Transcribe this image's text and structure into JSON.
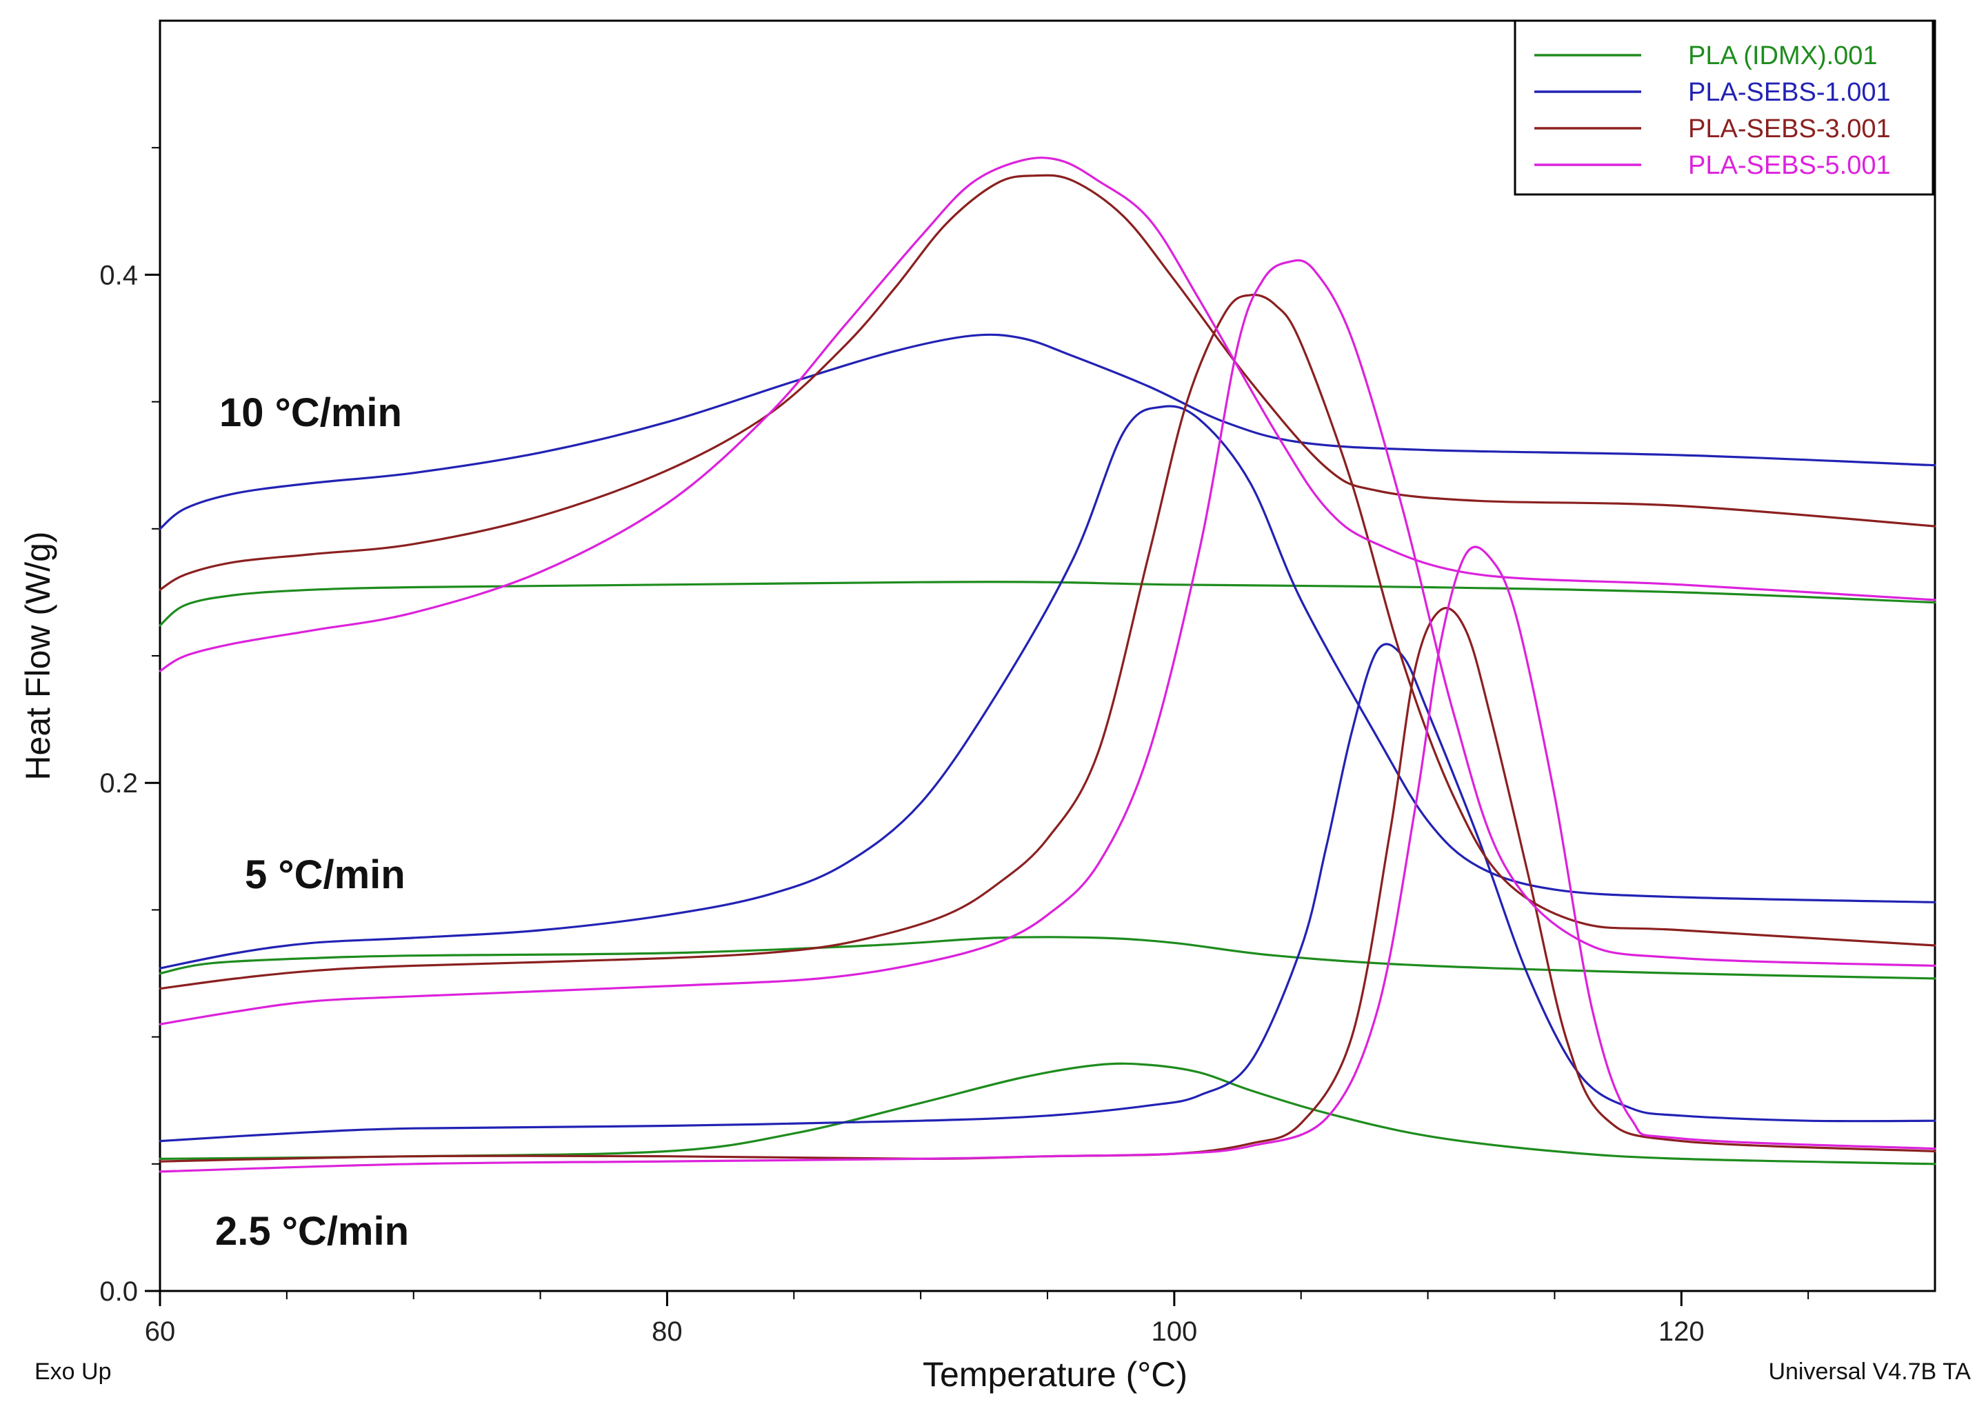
{
  "chart_data": {
    "type": "line",
    "xlabel": "Temperature (°C)",
    "ylabel": "Heat Flow (W/g)",
    "xlim": [
      60,
      130
    ],
    "ylim": [
      0.0,
      0.5
    ],
    "x_ticks": [
      60,
      80,
      100,
      120
    ],
    "x_tick_labels": [
      "60",
      "80",
      "100",
      "120"
    ],
    "x_minor_ticks": [
      65,
      70,
      75,
      85,
      90,
      95,
      105,
      110,
      115,
      125
    ],
    "y_ticks": [
      0.0,
      0.2,
      0.4
    ],
    "y_tick_labels": [
      "0.0",
      "0.2",
      "0.4"
    ],
    "y_minor_ticks": [
      0.05,
      0.1,
      0.15,
      0.25,
      0.3,
      0.35,
      0.45
    ],
    "grid": false,
    "legend_position": "top-right",
    "annotations": {
      "rate_10": "10 °C/min",
      "rate_5": "5 °C/min",
      "rate_2_5": "2.5 °C/min",
      "exo": "Exo Up",
      "software": "Universal V4.7B TA"
    },
    "series": [
      {
        "name": "PLA (IDMX).001",
        "color": "#1e8c1e",
        "curves": [
          [
            [
              60,
              0.262
            ],
            [
              61,
              0.27
            ],
            [
              63,
              0.274
            ],
            [
              66,
              0.276
            ],
            [
              70,
              0.277
            ],
            [
              80,
              0.278
            ],
            [
              90,
              0.279
            ],
            [
              95,
              0.279
            ],
            [
              100,
              0.278
            ],
            [
              110,
              0.277
            ],
            [
              120,
              0.275
            ],
            [
              130,
              0.271
            ]
          ],
          [
            [
              60,
              0.125
            ],
            [
              62,
              0.129
            ],
            [
              66,
              0.131
            ],
            [
              70,
              0.132
            ],
            [
              80,
              0.133
            ],
            [
              88,
              0.136
            ],
            [
              93,
              0.139
            ],
            [
              97,
              0.139
            ],
            [
              100,
              0.137
            ],
            [
              104,
              0.132
            ],
            [
              110,
              0.128
            ],
            [
              120,
              0.125
            ],
            [
              130,
              0.123
            ]
          ],
          [
            [
              60,
              0.052
            ],
            [
              70,
              0.053
            ],
            [
              80,
              0.055
            ],
            [
              85,
              0.062
            ],
            [
              90,
              0.074
            ],
            [
              94,
              0.084
            ],
            [
              97,
              0.089
            ],
            [
              99,
              0.089
            ],
            [
              101,
              0.086
            ],
            [
              103,
              0.079
            ],
            [
              106,
              0.07
            ],
            [
              110,
              0.061
            ],
            [
              115,
              0.055
            ],
            [
              120,
              0.052
            ],
            [
              130,
              0.05
            ]
          ]
        ]
      },
      {
        "name": "PLA-SEBS-1.001",
        "color": "#2222b4",
        "curves": [
          [
            [
              60,
              0.3
            ],
            [
              61,
              0.308
            ],
            [
              63,
              0.314
            ],
            [
              66,
              0.318
            ],
            [
              70,
              0.322
            ],
            [
              75,
              0.33
            ],
            [
              80,
              0.342
            ],
            [
              85,
              0.358
            ],
            [
              89,
              0.37
            ],
            [
              92,
              0.376
            ],
            [
              94,
              0.375
            ],
            [
              96,
              0.368
            ],
            [
              99,
              0.356
            ],
            [
              102,
              0.342
            ],
            [
              105,
              0.334
            ],
            [
              110,
              0.331
            ],
            [
              120,
              0.329
            ],
            [
              130,
              0.325
            ]
          ],
          [
            [
              60,
              0.127
            ],
            [
              63,
              0.133
            ],
            [
              66,
              0.137
            ],
            [
              70,
              0.139
            ],
            [
              75,
              0.142
            ],
            [
              80,
              0.148
            ],
            [
              84,
              0.156
            ],
            [
              87,
              0.168
            ],
            [
              90,
              0.192
            ],
            [
              93,
              0.235
            ],
            [
              96,
              0.288
            ],
            [
              98,
              0.338
            ],
            [
              99.5,
              0.348
            ],
            [
              101,
              0.343
            ],
            [
              103,
              0.318
            ],
            [
              105,
              0.272
            ],
            [
              108,
              0.218
            ],
            [
              110,
              0.185
            ],
            [
              112,
              0.167
            ],
            [
              115,
              0.158
            ],
            [
              120,
              0.155
            ],
            [
              130,
              0.153
            ]
          ],
          [
            [
              60,
              0.059
            ],
            [
              65,
              0.062
            ],
            [
              70,
              0.064
            ],
            [
              80,
              0.065
            ],
            [
              90,
              0.067
            ],
            [
              95,
              0.069
            ],
            [
              99,
              0.073
            ],
            [
              101,
              0.077
            ],
            [
              103,
              0.09
            ],
            [
              105,
              0.135
            ],
            [
              106,
              0.175
            ],
            [
              107,
              0.22
            ],
            [
              108,
              0.252
            ],
            [
              109,
              0.25
            ],
            [
              110,
              0.228
            ],
            [
              112,
              0.178
            ],
            [
              114,
              0.123
            ],
            [
              116,
              0.085
            ],
            [
              118,
              0.072
            ],
            [
              120,
              0.069
            ],
            [
              125,
              0.067
            ],
            [
              130,
              0.067
            ]
          ]
        ]
      },
      {
        "name": "PLA-SEBS-3.001",
        "color": "#8b2020",
        "curves": [
          [
            [
              60,
              0.276
            ],
            [
              61,
              0.282
            ],
            [
              63,
              0.287
            ],
            [
              66,
              0.29
            ],
            [
              70,
              0.294
            ],
            [
              75,
              0.305
            ],
            [
              80,
              0.323
            ],
            [
              84,
              0.345
            ],
            [
              87,
              0.372
            ],
            [
              89,
              0.395
            ],
            [
              91,
              0.42
            ],
            [
              93,
              0.436
            ],
            [
              94.5,
              0.439
            ],
            [
              96,
              0.437
            ],
            [
              98,
              0.423
            ],
            [
              100,
              0.398
            ],
            [
              103,
              0.358
            ],
            [
              106,
              0.324
            ],
            [
              108,
              0.315
            ],
            [
              112,
              0.311
            ],
            [
              120,
              0.309
            ],
            [
              130,
              0.301
            ]
          ],
          [
            [
              60,
              0.119
            ],
            [
              63,
              0.123
            ],
            [
              66,
              0.126
            ],
            [
              70,
              0.128
            ],
            [
              80,
              0.131
            ],
            [
              85,
              0.134
            ],
            [
              88,
              0.139
            ],
            [
              91,
              0.148
            ],
            [
              93,
              0.16
            ],
            [
              95,
              0.178
            ],
            [
              97,
              0.212
            ],
            [
              99,
              0.29
            ],
            [
              100.5,
              0.35
            ],
            [
              102,
              0.385
            ],
            [
              103,
              0.392
            ],
            [
              104,
              0.388
            ],
            [
              105,
              0.373
            ],
            [
              107,
              0.318
            ],
            [
              109,
              0.248
            ],
            [
              111,
              0.195
            ],
            [
              113,
              0.162
            ],
            [
              116,
              0.145
            ],
            [
              120,
              0.142
            ],
            [
              130,
              0.136
            ]
          ],
          [
            [
              60,
              0.051
            ],
            [
              70,
              0.053
            ],
            [
              80,
              0.053
            ],
            [
              90,
              0.052
            ],
            [
              95,
              0.053
            ],
            [
              100,
              0.054
            ],
            [
              103,
              0.058
            ],
            [
              105,
              0.066
            ],
            [
              107,
              0.1
            ],
            [
              108.5,
              0.18
            ],
            [
              109.5,
              0.245
            ],
            [
              110.5,
              0.268
            ],
            [
              111.5,
              0.26
            ],
            [
              112.5,
              0.225
            ],
            [
              114,
              0.162
            ],
            [
              115.5,
              0.098
            ],
            [
              117,
              0.068
            ],
            [
              120,
              0.059
            ],
            [
              130,
              0.055
            ]
          ]
        ]
      },
      {
        "name": "PLA-SEBS-5.001",
        "color": "#dc22dc",
        "curves": [
          [
            [
              60,
              0.244
            ],
            [
              61,
              0.25
            ],
            [
              63,
              0.255
            ],
            [
              66,
              0.26
            ],
            [
              70,
              0.267
            ],
            [
              75,
              0.283
            ],
            [
              80,
              0.31
            ],
            [
              84,
              0.345
            ],
            [
              87,
              0.38
            ],
            [
              90,
              0.415
            ],
            [
              92,
              0.436
            ],
            [
              94,
              0.445
            ],
            [
              95.5,
              0.445
            ],
            [
              97,
              0.437
            ],
            [
              99,
              0.422
            ],
            [
              101,
              0.39
            ],
            [
              104,
              0.338
            ],
            [
              106,
              0.308
            ],
            [
              108,
              0.294
            ],
            [
              112,
              0.282
            ],
            [
              120,
              0.278
            ],
            [
              130,
              0.272
            ]
          ],
          [
            [
              60,
              0.105
            ],
            [
              63,
              0.11
            ],
            [
              66,
              0.114
            ],
            [
              70,
              0.116
            ],
            [
              80,
              0.12
            ],
            [
              86,
              0.123
            ],
            [
              90,
              0.129
            ],
            [
              93,
              0.137
            ],
            [
              95,
              0.148
            ],
            [
              97,
              0.168
            ],
            [
              99,
              0.212
            ],
            [
              101,
              0.292
            ],
            [
              102.5,
              0.372
            ],
            [
              103.5,
              0.398
            ],
            [
              104.5,
              0.405
            ],
            [
              105.5,
              0.402
            ],
            [
              107,
              0.375
            ],
            [
              109,
              0.308
            ],
            [
              111,
              0.228
            ],
            [
              113,
              0.168
            ],
            [
              116,
              0.138
            ],
            [
              120,
              0.131
            ],
            [
              130,
              0.128
            ]
          ],
          [
            [
              60,
              0.047
            ],
            [
              70,
              0.05
            ],
            [
              80,
              0.051
            ],
            [
              90,
              0.052
            ],
            [
              95,
              0.053
            ],
            [
              100,
              0.054
            ],
            [
              103,
              0.057
            ],
            [
              106,
              0.068
            ],
            [
              108,
              0.11
            ],
            [
              109.5,
              0.19
            ],
            [
              110.5,
              0.255
            ],
            [
              111.5,
              0.29
            ],
            [
              112.5,
              0.288
            ],
            [
              113.5,
              0.265
            ],
            [
              115,
              0.195
            ],
            [
              116.5,
              0.11
            ],
            [
              118,
              0.068
            ],
            [
              120,
              0.06
            ],
            [
              130,
              0.056
            ]
          ]
        ]
      }
    ]
  }
}
